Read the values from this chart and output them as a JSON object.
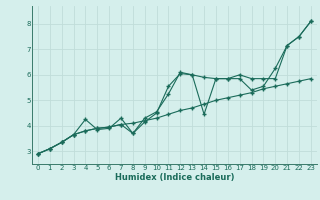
{
  "xlabel": "Humidex (Indice chaleur)",
  "background_color": "#d5efec",
  "grid_color": "#c0ddd9",
  "line_color": "#1a6b5a",
  "xlim": [
    -0.5,
    23.5
  ],
  "ylim": [
    2.5,
    8.7
  ],
  "xticks": [
    0,
    1,
    2,
    3,
    4,
    5,
    6,
    7,
    8,
    9,
    10,
    11,
    12,
    13,
    14,
    15,
    16,
    17,
    18,
    19,
    20,
    21,
    22,
    23
  ],
  "yticks": [
    3,
    4,
    5,
    6,
    7,
    8
  ],
  "series1_x": [
    0,
    1,
    2,
    3,
    4,
    5,
    6,
    7,
    8,
    9,
    10,
    11,
    12,
    13,
    14,
    15,
    16,
    17,
    18,
    19,
    20,
    21,
    22,
    23
  ],
  "series1_y": [
    2.9,
    3.1,
    3.35,
    3.65,
    3.8,
    3.9,
    3.95,
    4.05,
    4.1,
    4.2,
    4.3,
    4.45,
    4.6,
    4.7,
    4.85,
    5.0,
    5.1,
    5.2,
    5.3,
    5.45,
    5.55,
    5.65,
    5.75,
    5.85
  ],
  "series2_x": [
    0,
    1,
    2,
    3,
    4,
    5,
    6,
    7,
    8,
    9,
    10,
    11,
    12,
    13,
    14,
    15,
    16,
    17,
    18,
    19,
    20,
    21,
    22,
    23
  ],
  "series2_y": [
    2.9,
    3.1,
    3.35,
    3.65,
    4.25,
    3.85,
    3.9,
    4.3,
    3.7,
    4.15,
    4.5,
    5.55,
    6.05,
    6.0,
    5.9,
    5.85,
    5.85,
    5.85,
    5.4,
    5.55,
    6.25,
    7.15,
    7.5,
    8.1
  ],
  "series3_x": [
    0,
    1,
    2,
    3,
    4,
    5,
    6,
    7,
    8,
    9,
    10,
    11,
    12,
    13,
    14,
    15,
    16,
    17,
    18,
    19,
    20,
    21,
    22,
    23
  ],
  "series3_y": [
    2.9,
    3.1,
    3.35,
    3.65,
    3.8,
    3.9,
    3.95,
    4.05,
    3.7,
    4.3,
    4.55,
    5.25,
    6.1,
    6.0,
    4.45,
    5.85,
    5.85,
    6.0,
    5.85,
    5.85,
    5.85,
    7.15,
    7.5,
    8.1
  ],
  "marker": "+",
  "markersize": 3.5,
  "linewidth": 0.8,
  "tick_fontsize": 5.0,
  "xlabel_fontsize": 6.0,
  "spine_color": "#3a7a6a"
}
